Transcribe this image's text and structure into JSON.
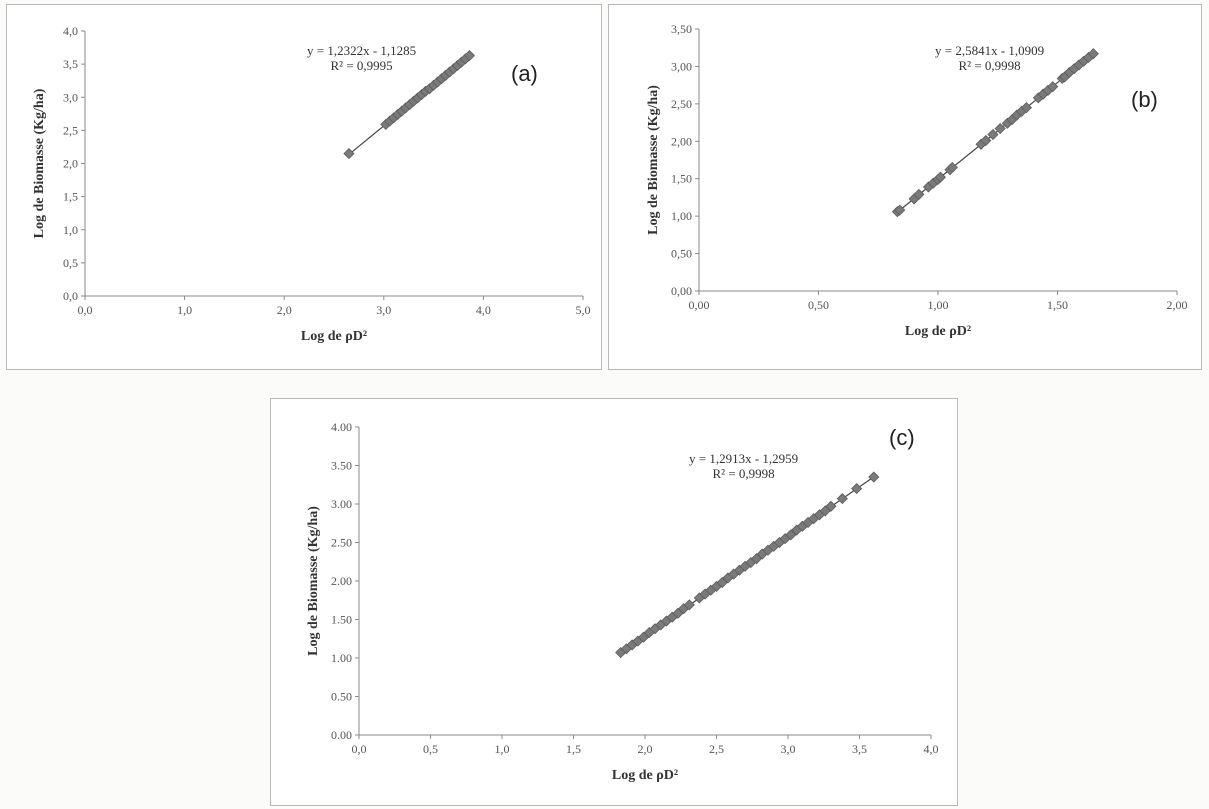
{
  "chart_data": [
    {
      "type": "scatter",
      "panel_label": "(a)",
      "xlabel": "Log de ρD²",
      "ylabel": "Log de Biomasse (Kg/ha)",
      "xlim": [
        0,
        5
      ],
      "ylim": [
        0,
        4
      ],
      "x_ticks": [
        "0,0",
        "1,0",
        "2,0",
        "3,0",
        "4,0",
        "5,0"
      ],
      "y_ticks": [
        "0,0",
        "0,5",
        "1,0",
        "1,5",
        "2,0",
        "2,5",
        "3,0",
        "3,5",
        "4,0"
      ],
      "equation": "y = 1,2322x - 1,1285",
      "r_squared": "R² = 0,9995",
      "trendline": {
        "slope": 1.2322,
        "intercept": -1.1285,
        "x_range": [
          2.65,
          3.88
        ]
      },
      "series": [
        {
          "x": [
            2.65,
            3.02,
            3.06,
            3.1,
            3.14,
            3.18,
            3.22,
            3.26,
            3.3,
            3.34,
            3.38,
            3.42,
            3.46,
            3.5,
            3.54,
            3.58,
            3.62,
            3.66,
            3.7,
            3.74,
            3.78,
            3.82,
            3.86
          ],
          "y": [
            2.15,
            2.59,
            2.64,
            2.69,
            2.74,
            2.79,
            2.84,
            2.89,
            2.94,
            2.99,
            3.04,
            3.09,
            3.13,
            3.18,
            3.23,
            3.28,
            3.33,
            3.38,
            3.43,
            3.48,
            3.53,
            3.58,
            3.63
          ]
        }
      ]
    },
    {
      "type": "scatter",
      "panel_label": "(b)",
      "xlabel": "Log  de ρD²",
      "ylabel": "Log de Biomasse (Kg/ha)",
      "xlim": [
        0,
        2
      ],
      "ylim": [
        0,
        3.5
      ],
      "x_ticks": [
        "0,00",
        "0,50",
        "1,00",
        "1,50",
        "2,00"
      ],
      "y_ticks": [
        "0,00",
        "0,50",
        "1,00",
        "1,50",
        "2,00",
        "2,50",
        "3,00",
        "3,50"
      ],
      "equation": "y = 2,5841x - 1,0909",
      "r_squared": "R² = 0,9998",
      "trendline": {
        "slope": 2.5841,
        "intercept": -1.0909,
        "x_range": [
          0.83,
          1.66
        ]
      },
      "series": [
        {
          "x": [
            0.83,
            0.84,
            0.9,
            0.92,
            0.96,
            0.98,
            1.0,
            1.01,
            1.05,
            1.06,
            1.18,
            1.2,
            1.23,
            1.26,
            1.29,
            1.31,
            1.33,
            1.35,
            1.37,
            1.42,
            1.44,
            1.46,
            1.48,
            1.52,
            1.53,
            1.55,
            1.57,
            1.59,
            1.61,
            1.63,
            1.65
          ],
          "y": [
            1.06,
            1.08,
            1.23,
            1.29,
            1.39,
            1.44,
            1.49,
            1.52,
            1.62,
            1.65,
            1.96,
            2.01,
            2.09,
            2.17,
            2.24,
            2.29,
            2.35,
            2.4,
            2.45,
            2.58,
            2.63,
            2.68,
            2.73,
            2.84,
            2.86,
            2.92,
            2.97,
            3.02,
            3.07,
            3.12,
            3.17
          ]
        }
      ]
    },
    {
      "type": "scatter",
      "panel_label": "(c)",
      "xlabel": "Log de ρD²",
      "ylabel": "Log de Biomasse (Kg/ha)",
      "xlim": [
        0,
        4
      ],
      "ylim": [
        0,
        4
      ],
      "x_ticks": [
        "0,0",
        "0,5",
        "1,0",
        "1,5",
        "2,0",
        "2,5",
        "3,0",
        "3,5",
        "4,0"
      ],
      "y_ticks": [
        "0.00",
        "0.50",
        "1.00",
        "1.50",
        "2.00",
        "2.50",
        "3.00",
        "3.50",
        "4.00"
      ],
      "equation": "y = 1,2913x - 1,2959",
      "r_squared": "R² = 0,9998",
      "trendline": {
        "slope": 1.2913,
        "intercept": -1.2959,
        "x_range": [
          1.83,
          3.62
        ]
      },
      "series": [
        {
          "x": [
            1.83,
            1.87,
            1.91,
            1.95,
            1.99,
            2.03,
            2.07,
            2.11,
            2.15,
            2.19,
            2.23,
            2.27,
            2.31,
            2.38,
            2.42,
            2.46,
            2.5,
            2.54,
            2.58,
            2.62,
            2.66,
            2.7,
            2.74,
            2.78,
            2.82,
            2.86,
            2.9,
            2.94,
            2.98,
            3.02,
            3.06,
            3.1,
            3.14,
            3.18,
            3.22,
            3.26,
            3.3,
            3.38,
            3.48,
            3.6
          ],
          "y": [
            1.07,
            1.12,
            1.17,
            1.22,
            1.27,
            1.33,
            1.38,
            1.43,
            1.48,
            1.53,
            1.58,
            1.64,
            1.69,
            1.78,
            1.83,
            1.88,
            1.93,
            1.98,
            2.04,
            2.09,
            2.14,
            2.19,
            2.24,
            2.29,
            2.35,
            2.4,
            2.45,
            2.5,
            2.55,
            2.6,
            2.66,
            2.71,
            2.76,
            2.81,
            2.86,
            2.91,
            2.97,
            3.07,
            3.2,
            3.35
          ]
        }
      ]
    }
  ]
}
